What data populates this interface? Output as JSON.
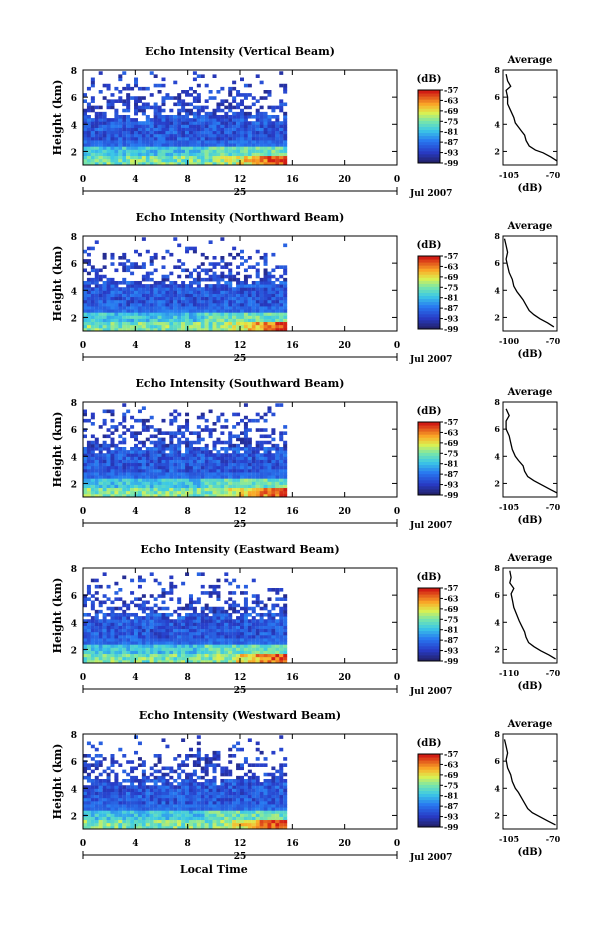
{
  "chart_data": [
    {
      "type": "heatmap",
      "title": "Echo Intensity (Vertical Beam)",
      "ylabel": "Height (km)",
      "xlim": [
        0,
        24
      ],
      "ylim": [
        1,
        8
      ],
      "xticks": [
        "0",
        "4",
        "8",
        "12",
        "16",
        "20",
        "0"
      ],
      "yticks": [
        "2",
        "4",
        "6",
        "8"
      ],
      "date_label": "25",
      "month_label": "Jul 2007",
      "data_end_hour": 15.5,
      "colorbar": {
        "unit": "(dB)",
        "range": [
          -99,
          -57
        ],
        "ticks": [
          "-57",
          "-63",
          "-69",
          "-75",
          "-81",
          "-87",
          "-93",
          "-99"
        ]
      },
      "profile": {
        "title": "Average",
        "xlabel": "(dB)",
        "xticks": [
          "-105",
          "-70"
        ],
        "xlim": [
          -105,
          -70
        ],
        "points": [
          [
            -70,
            1.3
          ],
          [
            -74,
            1.6
          ],
          [
            -79,
            1.9
          ],
          [
            -84,
            2.1
          ],
          [
            -88,
            2.4
          ],
          [
            -90,
            2.8
          ],
          [
            -91,
            3.2
          ],
          [
            -93,
            3.5
          ],
          [
            -95,
            3.8
          ],
          [
            -97,
            4.1
          ],
          [
            -98,
            4.5
          ],
          [
            -100,
            5.0
          ],
          [
            -102,
            5.5
          ],
          [
            -102,
            6.0
          ],
          [
            -103,
            6.5
          ],
          [
            -100,
            6.8
          ],
          [
            -102,
            7.2
          ],
          [
            -103,
            7.7
          ]
        ]
      }
    },
    {
      "type": "heatmap",
      "title": "Echo Intensity (Northward Beam)",
      "ylabel": "Height (km)",
      "xlim": [
        0,
        24
      ],
      "ylim": [
        1,
        8
      ],
      "xticks": [
        "0",
        "4",
        "8",
        "12",
        "16",
        "20",
        "0"
      ],
      "yticks": [
        "2",
        "4",
        "6",
        "8"
      ],
      "date_label": "25",
      "month_label": "Jul 2007",
      "data_end_hour": 15.5,
      "colorbar": {
        "unit": "(dB)",
        "range": [
          -99,
          -57
        ],
        "ticks": [
          "-57",
          "-63",
          "-69",
          "-75",
          "-81",
          "-87",
          "-93",
          "-99"
        ]
      },
      "profile": {
        "title": "Average",
        "xlabel": "(dB)",
        "xticks": [
          "-100",
          "-70"
        ],
        "xlim": [
          -105,
          -70
        ],
        "points": [
          [
            -72,
            1.3
          ],
          [
            -76,
            1.6
          ],
          [
            -81,
            1.9
          ],
          [
            -85,
            2.2
          ],
          [
            -88,
            2.5
          ],
          [
            -90,
            2.9
          ],
          [
            -92,
            3.3
          ],
          [
            -94,
            3.6
          ],
          [
            -96,
            3.9
          ],
          [
            -98,
            4.3
          ],
          [
            -99,
            4.8
          ],
          [
            -101,
            5.3
          ],
          [
            -102,
            5.8
          ],
          [
            -103,
            6.3
          ],
          [
            -102,
            6.8
          ],
          [
            -103,
            7.3
          ],
          [
            -104,
            7.8
          ]
        ]
      }
    },
    {
      "type": "heatmap",
      "title": "Echo Intensity (Southward Beam)",
      "ylabel": "Height (km)",
      "xlim": [
        0,
        24
      ],
      "ylim": [
        1,
        8
      ],
      "xticks": [
        "0",
        "4",
        "8",
        "12",
        "16",
        "20",
        "0"
      ],
      "yticks": [
        "2",
        "4",
        "6",
        "8"
      ],
      "date_label": "25",
      "month_label": "Jul 2007",
      "data_end_hour": 15.5,
      "colorbar": {
        "unit": "(dB)",
        "range": [
          -99,
          -57
        ],
        "ticks": [
          "-57",
          "-63",
          "-69",
          "-75",
          "-81",
          "-87",
          "-93",
          "-99"
        ]
      },
      "profile": {
        "title": "Average",
        "xlabel": "(dB)",
        "xticks": [
          "-105",
          "-70"
        ],
        "xlim": [
          -105,
          -70
        ],
        "points": [
          [
            -70,
            1.3
          ],
          [
            -75,
            1.6
          ],
          [
            -80,
            1.9
          ],
          [
            -85,
            2.2
          ],
          [
            -89,
            2.5
          ],
          [
            -91,
            2.9
          ],
          [
            -92,
            3.3
          ],
          [
            -95,
            3.7
          ],
          [
            -97,
            4.0
          ],
          [
            -99,
            4.5
          ],
          [
            -100,
            5.0
          ],
          [
            -101,
            5.5
          ],
          [
            -103,
            6.0
          ],
          [
            -103,
            6.6
          ],
          [
            -101,
            7.0
          ],
          [
            -103,
            7.5
          ]
        ]
      }
    },
    {
      "type": "heatmap",
      "title": "Echo Intensity (Eastward Beam)",
      "ylabel": "Height (km)",
      "xlim": [
        0,
        24
      ],
      "ylim": [
        1,
        8
      ],
      "xticks": [
        "0",
        "4",
        "8",
        "12",
        "16",
        "20",
        "0"
      ],
      "yticks": [
        "2",
        "4",
        "6",
        "8"
      ],
      "date_label": "25",
      "month_label": "Jul 2007",
      "data_end_hour": 15.5,
      "colorbar": {
        "unit": "(dB)",
        "range": [
          -99,
          -57
        ],
        "ticks": [
          "-57",
          "-63",
          "-69",
          "-75",
          "-81",
          "-87",
          "-93",
          "-99"
        ]
      },
      "profile": {
        "title": "Average",
        "xlabel": "(dB)",
        "xticks": [
          "-110",
          "-70"
        ],
        "xlim": [
          -110,
          -70
        ],
        "points": [
          [
            -71,
            1.3
          ],
          [
            -76,
            1.6
          ],
          [
            -82,
            1.9
          ],
          [
            -87,
            2.2
          ],
          [
            -91,
            2.5
          ],
          [
            -93,
            2.9
          ],
          [
            -94,
            3.3
          ],
          [
            -96,
            3.7
          ],
          [
            -98,
            4.1
          ],
          [
            -100,
            4.6
          ],
          [
            -102,
            5.1
          ],
          [
            -103,
            5.6
          ],
          [
            -104,
            6.1
          ],
          [
            -102,
            6.5
          ],
          [
            -105,
            6.9
          ],
          [
            -104,
            7.3
          ],
          [
            -105,
            7.8
          ]
        ]
      }
    },
    {
      "type": "heatmap",
      "title": "Echo Intensity (Westward Beam)",
      "ylabel": "Height (km)",
      "xlabel": "Local Time",
      "xlim": [
        0,
        24
      ],
      "ylim": [
        1,
        8
      ],
      "xticks": [
        "0",
        "4",
        "8",
        "12",
        "16",
        "20",
        "0"
      ],
      "yticks": [
        "2",
        "4",
        "6",
        "8"
      ],
      "date_label": "25",
      "month_label": "Jul 2007",
      "data_end_hour": 15.5,
      "colorbar": {
        "unit": "(dB)",
        "range": [
          -99,
          -57
        ],
        "ticks": [
          "-57",
          "-63",
          "-69",
          "-75",
          "-81",
          "-87",
          "-93",
          "-99"
        ]
      },
      "profile": {
        "title": "Average",
        "xlabel": "(dB)",
        "xticks": [
          "-105",
          "-70"
        ],
        "xlim": [
          -105,
          -70
        ],
        "points": [
          [
            -71,
            1.3
          ],
          [
            -76,
            1.6
          ],
          [
            -81,
            1.9
          ],
          [
            -86,
            2.2
          ],
          [
            -89,
            2.5
          ],
          [
            -91,
            2.9
          ],
          [
            -93,
            3.3
          ],
          [
            -95,
            3.7
          ],
          [
            -97,
            4.0
          ],
          [
            -99,
            4.5
          ],
          [
            -100,
            5.0
          ],
          [
            -102,
            5.5
          ],
          [
            -103,
            6.1
          ],
          [
            -102,
            6.6
          ],
          [
            -103,
            7.1
          ],
          [
            -104,
            7.6
          ]
        ]
      }
    }
  ]
}
